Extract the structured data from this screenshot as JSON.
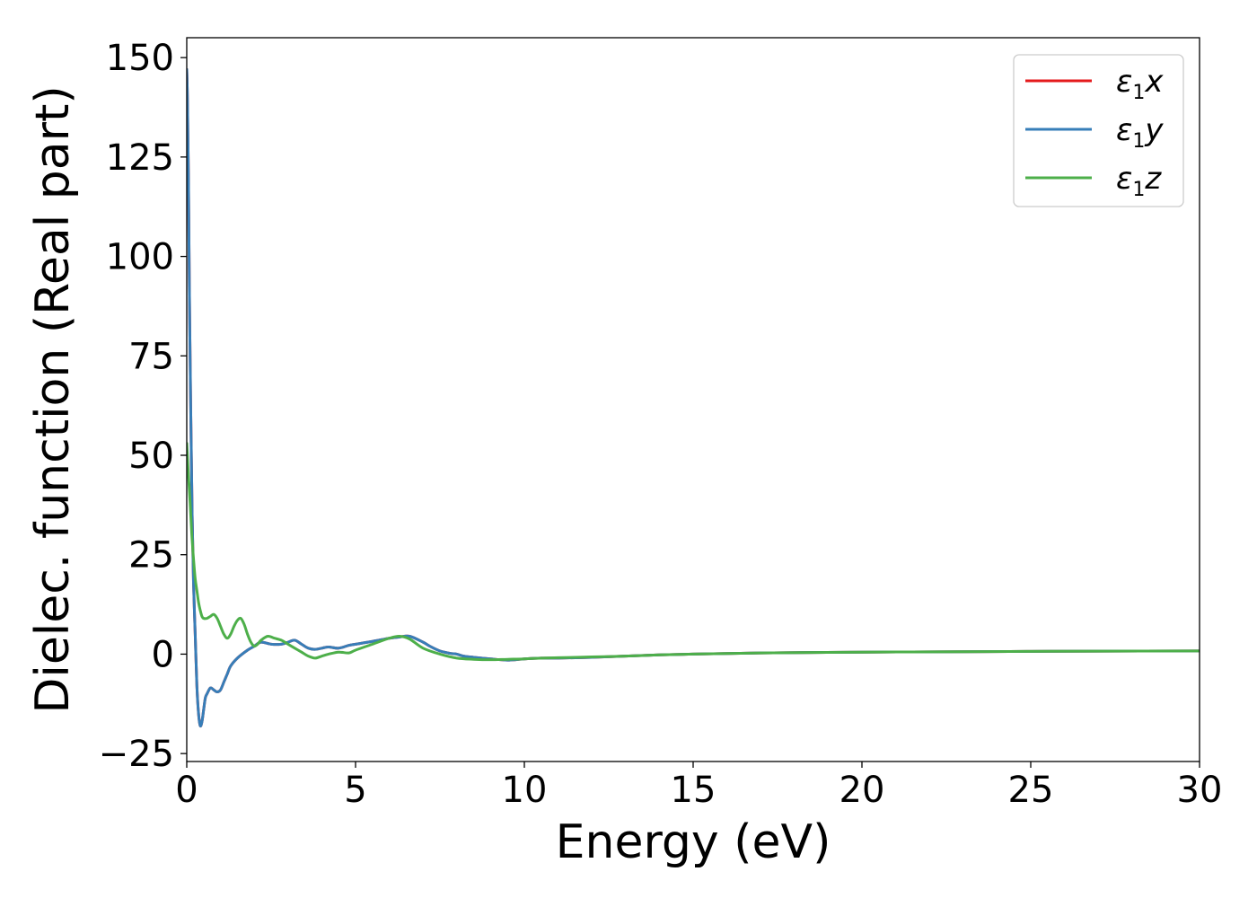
{
  "chart_data": {
    "type": "line",
    "title": "",
    "xlabel": "Energy (eV)",
    "ylabel": "Dielec. function (Real part)",
    "xlim": [
      0,
      30
    ],
    "ylim": [
      -27,
      155
    ],
    "xticks": [
      0,
      5,
      10,
      15,
      20,
      25,
      30
    ],
    "yticks": [
      -25,
      0,
      25,
      50,
      75,
      100,
      125,
      150
    ],
    "xtick_labels": [
      "0",
      "5",
      "10",
      "15",
      "20",
      "25",
      "30"
    ],
    "ytick_labels": [
      "−25",
      "0",
      "25",
      "50",
      "75",
      "100",
      "125",
      "150"
    ],
    "grid": false,
    "legend_position": "top-right",
    "series": [
      {
        "name": "ε1x",
        "legend": {
          "base": "ε",
          "sub": "1",
          "suffix": "x"
        },
        "color": "#e41a1c",
        "x": [
          0.0,
          0.02,
          0.05,
          0.08,
          0.12,
          0.16,
          0.2,
          0.25,
          0.3,
          0.35,
          0.4,
          0.45,
          0.5,
          0.55,
          0.6,
          0.7,
          0.8,
          0.9,
          1.0,
          1.1,
          1.2,
          1.3,
          1.5,
          1.8,
          2.0,
          2.2,
          2.5,
          2.8,
          3.0,
          3.2,
          3.4,
          3.6,
          3.8,
          4.0,
          4.2,
          4.5,
          4.8,
          5.0,
          5.5,
          6.0,
          6.3,
          6.6,
          7.0,
          7.2,
          7.5,
          7.8,
          8.0,
          8.2,
          8.5,
          9.0,
          9.5,
          10.0,
          10.5,
          11.0,
          12.0,
          13.0,
          14.0,
          15.0,
          17.0,
          20.0,
          23.0,
          25.0,
          27.0,
          30.0
        ],
        "values": [
          147,
          140,
          120,
          90,
          60,
          35,
          18,
          5,
          -8,
          -15,
          -18,
          -17,
          -14,
          -11,
          -10,
          -8.5,
          -9,
          -9.5,
          -9,
          -7,
          -5,
          -3,
          -1,
          1,
          2,
          3,
          2.5,
          2.5,
          3,
          3.5,
          2.5,
          1.5,
          1.2,
          1.5,
          1.8,
          1.5,
          2.2,
          2.5,
          3.2,
          4.0,
          4.3,
          4.5,
          3,
          2,
          0.8,
          0.2,
          0,
          -0.5,
          -0.8,
          -1.2,
          -1.5,
          -1.2,
          -1.0,
          -1.0,
          -0.8,
          -0.5,
          -0.2,
          0.0,
          0.3,
          0.5,
          0.6,
          0.7,
          0.75,
          0.8
        ]
      },
      {
        "name": "ε1y",
        "legend": {
          "base": "ε",
          "sub": "1",
          "suffix": "y"
        },
        "color": "#377eb8",
        "x": [
          0.0,
          0.02,
          0.05,
          0.08,
          0.12,
          0.16,
          0.2,
          0.25,
          0.3,
          0.35,
          0.4,
          0.45,
          0.5,
          0.55,
          0.6,
          0.7,
          0.8,
          0.9,
          1.0,
          1.1,
          1.2,
          1.3,
          1.5,
          1.8,
          2.0,
          2.2,
          2.5,
          2.8,
          3.0,
          3.2,
          3.4,
          3.6,
          3.8,
          4.0,
          4.2,
          4.5,
          4.8,
          5.0,
          5.5,
          6.0,
          6.3,
          6.6,
          7.0,
          7.2,
          7.5,
          7.8,
          8.0,
          8.2,
          8.5,
          9.0,
          9.5,
          10.0,
          10.5,
          11.0,
          12.0,
          13.0,
          14.0,
          15.0,
          17.0,
          20.0,
          23.0,
          25.0,
          27.0,
          30.0
        ],
        "values": [
          147,
          140,
          120,
          90,
          60,
          35,
          18,
          5,
          -8,
          -15,
          -18,
          -17,
          -14,
          -11,
          -10,
          -8.5,
          -9,
          -9.5,
          -9,
          -7,
          -5,
          -3,
          -1,
          1,
          2,
          3,
          2.5,
          2.5,
          3,
          3.5,
          2.5,
          1.5,
          1.2,
          1.5,
          1.8,
          1.5,
          2.2,
          2.5,
          3.2,
          4.0,
          4.3,
          4.5,
          3,
          2,
          0.8,
          0.2,
          0,
          -0.5,
          -0.8,
          -1.2,
          -1.5,
          -1.2,
          -1.0,
          -1.0,
          -0.8,
          -0.5,
          -0.2,
          0.0,
          0.3,
          0.5,
          0.6,
          0.7,
          0.75,
          0.8
        ]
      },
      {
        "name": "ε1z",
        "legend": {
          "base": "ε",
          "sub": "1",
          "suffix": "z"
        },
        "color": "#4daf4a",
        "x": [
          0.0,
          0.05,
          0.1,
          0.15,
          0.2,
          0.25,
          0.3,
          0.35,
          0.4,
          0.45,
          0.5,
          0.6,
          0.7,
          0.8,
          0.9,
          1.0,
          1.1,
          1.2,
          1.3,
          1.4,
          1.5,
          1.6,
          1.7,
          1.8,
          1.9,
          2.0,
          2.1,
          2.2,
          2.4,
          2.6,
          2.8,
          3.0,
          3.2,
          3.4,
          3.6,
          3.8,
          4.0,
          4.2,
          4.5,
          4.8,
          5.0,
          5.5,
          6.0,
          6.3,
          6.6,
          7.0,
          7.5,
          8.0,
          8.5,
          9.0,
          9.5,
          10.0,
          10.5,
          11.0,
          12.0,
          13.0,
          14.0,
          15.0,
          17.0,
          20.0,
          23.0,
          25.0,
          27.0,
          30.0
        ],
        "values": [
          53,
          45,
          38,
          30,
          24,
          19,
          16,
          13,
          11,
          9.5,
          9,
          9,
          9.5,
          10,
          9,
          7,
          5,
          4,
          5,
          7,
          8.5,
          9,
          7.5,
          5,
          3,
          2,
          2.5,
          3.5,
          4.5,
          4,
          3.5,
          2.5,
          1.5,
          0.5,
          -0.5,
          -1,
          -0.5,
          0,
          0.5,
          0.3,
          1.0,
          2.5,
          4.0,
          4.5,
          3.8,
          1.5,
          0,
          -1.0,
          -1.3,
          -1.4,
          -1.3,
          -1.2,
          -1.0,
          -0.9,
          -0.7,
          -0.5,
          -0.2,
          0.0,
          0.3,
          0.5,
          0.6,
          0.7,
          0.75,
          0.8
        ]
      }
    ]
  }
}
